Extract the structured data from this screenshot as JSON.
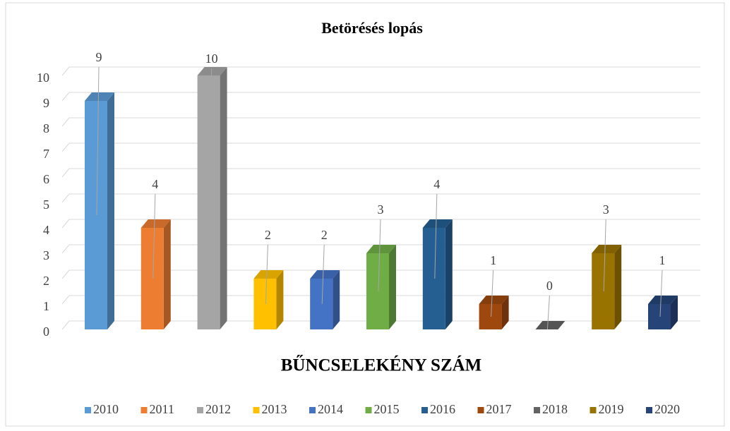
{
  "chart_data": {
    "type": "bar3d",
    "title": "Betörésés lopás",
    "x_label": "BŰNCSELEKÉNY SZÁM",
    "categories": [
      null
    ],
    "series": [
      {
        "name": "2010",
        "color": "#5b9bd5",
        "values": [
          9
        ]
      },
      {
        "name": "2011",
        "color": "#ed7d31",
        "values": [
          4
        ]
      },
      {
        "name": "2012",
        "color": "#a5a5a5",
        "values": [
          10
        ]
      },
      {
        "name": "2013",
        "color": "#ffc000",
        "values": [
          2
        ]
      },
      {
        "name": "2014",
        "color": "#4472c4",
        "values": [
          2
        ]
      },
      {
        "name": "2015",
        "color": "#70ad47",
        "values": [
          3
        ]
      },
      {
        "name": "2016",
        "color": "#255e91",
        "values": [
          4
        ]
      },
      {
        "name": "2017",
        "color": "#9e480e",
        "values": [
          1
        ]
      },
      {
        "name": "2018",
        "color": "#636363",
        "values": [
          0
        ]
      },
      {
        "name": "2019",
        "color": "#997300",
        "values": [
          3
        ]
      },
      {
        "name": "2020",
        "color": "#264478",
        "values": [
          1
        ]
      }
    ],
    "ylim": [
      0,
      10
    ],
    "yticks": [
      0,
      1,
      2,
      3,
      4,
      5,
      6,
      7,
      8,
      9,
      10
    ],
    "grid": true,
    "legend": "bottom",
    "data_labels": true
  }
}
